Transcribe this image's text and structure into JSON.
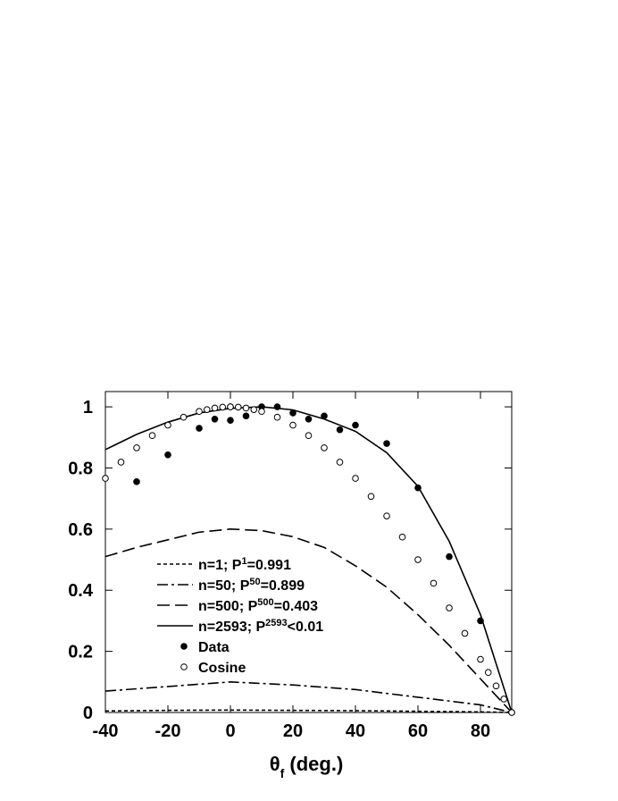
{
  "chart_data": {
    "type": "line",
    "x_label": [
      "θ",
      "f",
      " (deg.)"
    ],
    "xlim": [
      -40,
      90
    ],
    "ylim": [
      0,
      1.05
    ],
    "xticks": [
      -40,
      -20,
      0,
      20,
      40,
      60,
      80
    ],
    "yticks": [
      0,
      0.2,
      0.4,
      0.6,
      0.8,
      1
    ],
    "series": [
      {
        "name": [
          "n=1; P",
          "1",
          "=0.991"
        ],
        "style": "line",
        "dash": "4,3",
        "color": "#000000",
        "x": [
          -40,
          -20,
          0,
          20,
          40,
          60,
          80,
          90
        ],
        "values": [
          0.005,
          0.007,
          0.008,
          0.007,
          0.006,
          0.004,
          0.002,
          0
        ]
      },
      {
        "name": [
          "n=50; P",
          "50",
          "=0.899"
        ],
        "style": "line",
        "dash": "12,4,3,4",
        "color": "#000000",
        "x": [
          -40,
          -20,
          0,
          20,
          40,
          60,
          80,
          90
        ],
        "values": [
          0.07,
          0.085,
          0.1,
          0.09,
          0.075,
          0.05,
          0.025,
          0
        ]
      },
      {
        "name": [
          "n=500; P",
          "500",
          "=0.403"
        ],
        "style": "line",
        "dash": "14,6",
        "color": "#000000",
        "x": [
          -40,
          -30,
          -20,
          -10,
          0,
          10,
          20,
          30,
          40,
          50,
          60,
          70,
          80,
          90
        ],
        "values": [
          0.51,
          0.54,
          0.565,
          0.59,
          0.6,
          0.595,
          0.575,
          0.54,
          0.48,
          0.41,
          0.32,
          0.22,
          0.11,
          0
        ]
      },
      {
        "name": [
          "n=2593; P",
          "2593",
          "<0.01"
        ],
        "style": "line",
        "dash": "none",
        "color": "#000000",
        "x": [
          -40,
          -30,
          -20,
          -10,
          0,
          10,
          20,
          30,
          40,
          50,
          60,
          70,
          80,
          90
        ],
        "values": [
          0.86,
          0.91,
          0.95,
          0.98,
          0.995,
          1.0,
          0.99,
          0.96,
          0.92,
          0.85,
          0.74,
          0.56,
          0.32,
          0
        ]
      },
      {
        "name": [
          "Data"
        ],
        "style": "filled",
        "color": "#000000",
        "x": [
          -30,
          -20,
          -10,
          -5,
          0,
          0,
          5,
          10,
          15,
          20,
          25,
          30,
          35,
          40,
          50,
          60,
          70,
          80,
          90
        ],
        "values": [
          0.755,
          0.843,
          0.93,
          0.96,
          0.956,
          1.0,
          0.97,
          1.0,
          1.0,
          0.98,
          0.96,
          0.97,
          0.925,
          0.94,
          0.88,
          0.735,
          0.51,
          0.3,
          0
        ]
      },
      {
        "name": [
          "Cosine"
        ],
        "style": "open",
        "color": "#000000",
        "x": [
          -40,
          -35,
          -30,
          -25,
          -20,
          -15,
          -10,
          -7.5,
          -5,
          -2.5,
          0,
          2.5,
          5,
          7.5,
          10,
          15,
          20,
          25,
          30,
          35,
          40,
          45,
          50,
          55,
          60,
          65,
          70,
          75,
          80,
          82.5,
          85,
          87.5,
          90
        ],
        "values": [
          0.766,
          0.819,
          0.866,
          0.906,
          0.94,
          0.966,
          0.985,
          0.991,
          0.996,
          0.999,
          1,
          0.999,
          0.996,
          0.991,
          0.985,
          0.966,
          0.94,
          0.906,
          0.866,
          0.819,
          0.766,
          0.707,
          0.643,
          0.574,
          0.5,
          0.423,
          0.342,
          0.259,
          0.174,
          0.131,
          0.087,
          0.044,
          0
        ]
      }
    ]
  }
}
